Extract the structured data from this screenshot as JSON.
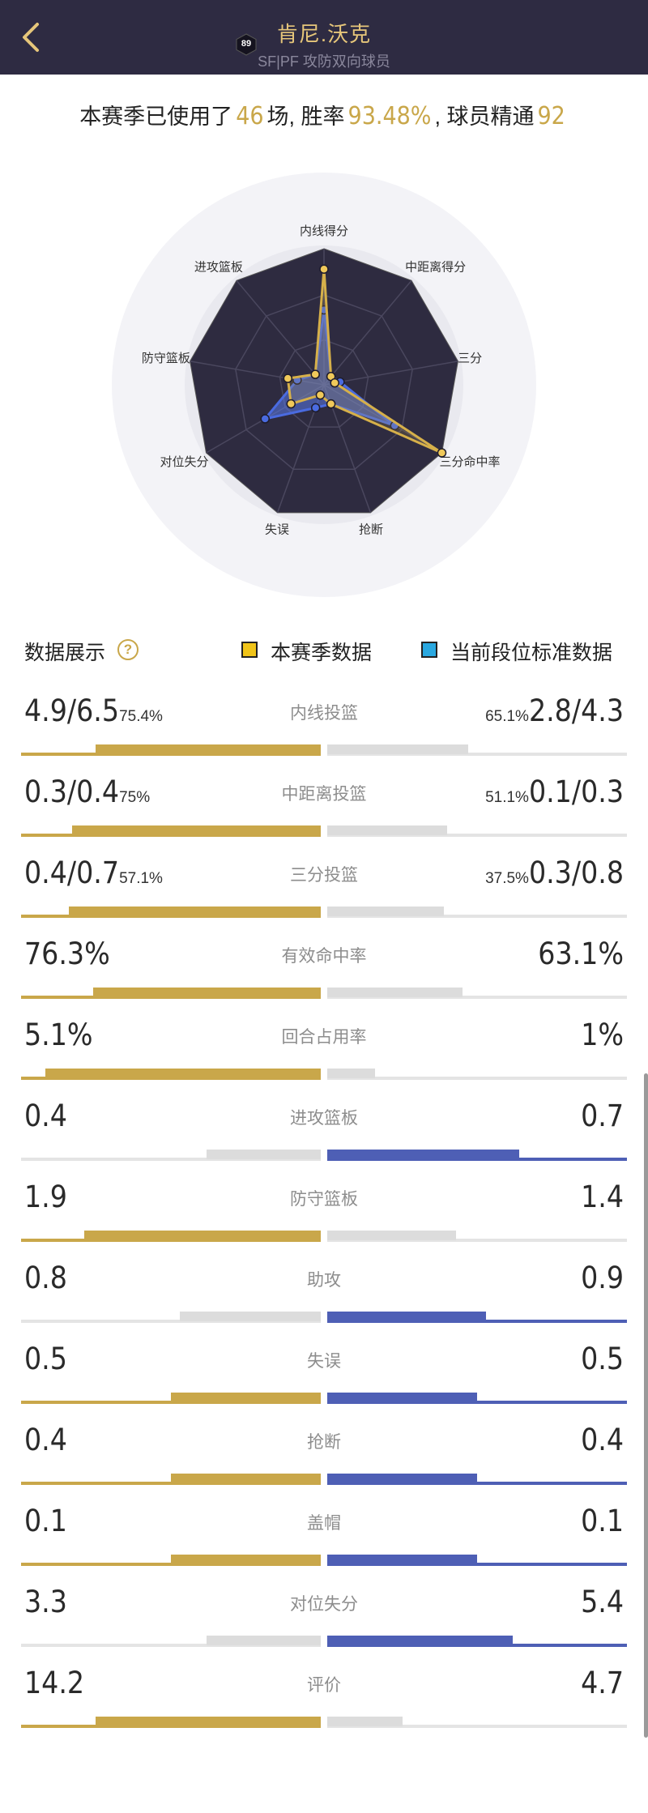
{
  "header": {
    "title": "肯尼.沃克",
    "subtitle": "SF|PF 攻防双向球员",
    "rating": "89"
  },
  "summary": {
    "prefix": "本赛季已使用了",
    "games": "46",
    "games_suffix": "场, 胜率",
    "win_rate": "93.48%",
    "mastery_label": ", 球员精通",
    "mastery": "92"
  },
  "colors": {
    "gold": "#c9a74a",
    "blue": "#4e5fb5",
    "grey": "#dcdcdc",
    "header_bg": "#2e2b42"
  },
  "radar": {
    "axes": [
      "内线得分",
      "中距离得分",
      "三分",
      "三分命中率",
      "抢断",
      "失误",
      "对位失分",
      "防守篮板",
      "进攻篮板"
    ],
    "season": [
      0.85,
      0.08,
      0.08,
      1.0,
      0.15,
      0.08,
      0.28,
      0.27,
      0.1
    ],
    "standard": [
      0.55,
      0.08,
      0.12,
      0.6,
      0.15,
      0.18,
      0.5,
      0.2,
      0.1
    ]
  },
  "legend": {
    "title": "数据展示",
    "help_icon": "question-icon",
    "season_label": "本赛季数据",
    "standard_label": "当前段位标准数据"
  },
  "stats": [
    {
      "label": "内线投篮",
      "left": "4.9/6.5",
      "left_pct": "75.4%",
      "right": "2.8/4.3",
      "right_pct": "65.1%",
      "left_fill": 0.75,
      "right_fill": 0.47,
      "left_color": "gold",
      "right_color": "grey"
    },
    {
      "label": "中距离投篮",
      "left": "0.3/0.4",
      "left_pct": "75%",
      "right": "0.1/0.3",
      "right_pct": "51.1%",
      "left_fill": 0.83,
      "right_fill": 0.4,
      "left_color": "gold",
      "right_color": "grey"
    },
    {
      "label": "三分投篮",
      "left": "0.4/0.7",
      "left_pct": "57.1%",
      "right": "0.3/0.8",
      "right_pct": "37.5%",
      "left_fill": 0.84,
      "right_fill": 0.39,
      "left_color": "gold",
      "right_color": "grey"
    },
    {
      "label": "有效命中率",
      "left": "76.3%",
      "left_pct": "",
      "right": "63.1%",
      "right_pct": "",
      "left_fill": 0.76,
      "right_fill": 0.45,
      "left_color": "gold",
      "right_color": "grey"
    },
    {
      "label": "回合占用率",
      "left": "5.1%",
      "left_pct": "",
      "right": "1%",
      "right_pct": "",
      "left_fill": 0.92,
      "right_fill": 0.16,
      "left_color": "gold",
      "right_color": "grey"
    },
    {
      "label": "进攻篮板",
      "left": "0.4",
      "left_pct": "",
      "right": "0.7",
      "right_pct": "",
      "left_fill": 0.38,
      "right_fill": 0.64,
      "left_color": "grey",
      "right_color": "blue"
    },
    {
      "label": "防守篮板",
      "left": "1.9",
      "left_pct": "",
      "right": "1.4",
      "right_pct": "",
      "left_fill": 0.79,
      "right_fill": 0.43,
      "left_color": "gold",
      "right_color": "grey"
    },
    {
      "label": "助攻",
      "left": "0.8",
      "left_pct": "",
      "right": "0.9",
      "right_pct": "",
      "left_fill": 0.47,
      "right_fill": 0.53,
      "left_color": "grey",
      "right_color": "blue"
    },
    {
      "label": "失误",
      "left": "0.5",
      "left_pct": "",
      "right": "0.5",
      "right_pct": "",
      "left_fill": 0.5,
      "right_fill": 0.5,
      "left_color": "gold",
      "right_color": "blue"
    },
    {
      "label": "抢断",
      "left": "0.4",
      "left_pct": "",
      "right": "0.4",
      "right_pct": "",
      "left_fill": 0.5,
      "right_fill": 0.5,
      "left_color": "gold",
      "right_color": "blue"
    },
    {
      "label": "盖帽",
      "left": "0.1",
      "left_pct": "",
      "right": "0.1",
      "right_pct": "",
      "left_fill": 0.5,
      "right_fill": 0.5,
      "left_color": "gold",
      "right_color": "blue"
    },
    {
      "label": "对位失分",
      "left": "3.3",
      "left_pct": "",
      "right": "5.4",
      "right_pct": "",
      "left_fill": 0.38,
      "right_fill": 0.62,
      "left_color": "grey",
      "right_color": "blue"
    },
    {
      "label": "评价",
      "left": "14.2",
      "left_pct": "",
      "right": "4.7",
      "right_pct": "",
      "left_fill": 0.75,
      "right_fill": 0.25,
      "left_color": "gold",
      "right_color": "grey"
    }
  ]
}
